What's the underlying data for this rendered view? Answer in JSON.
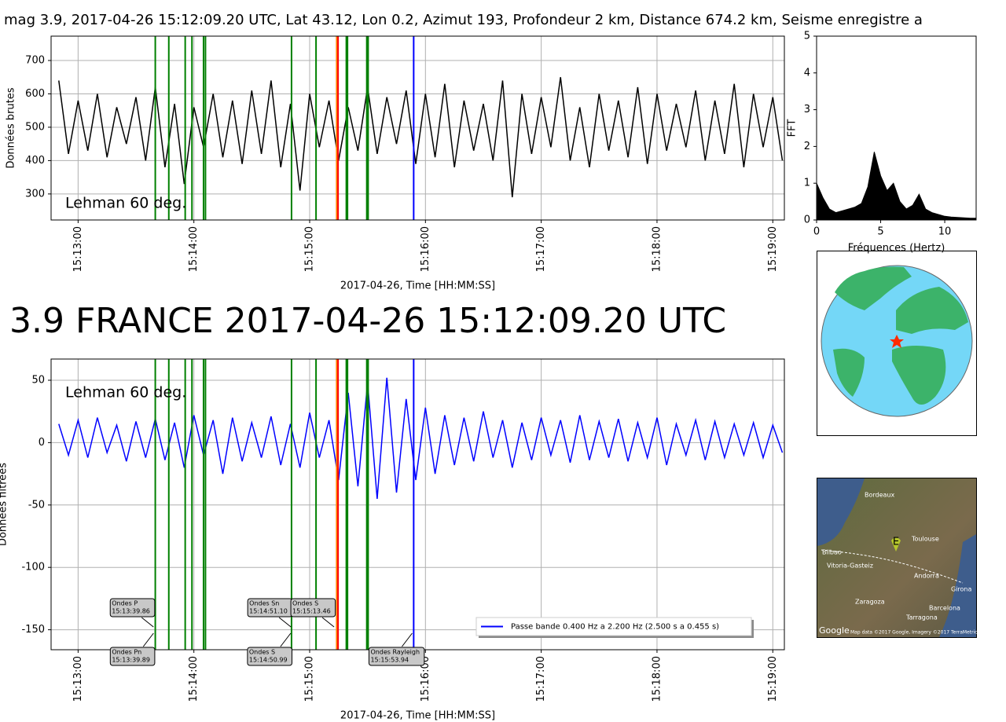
{
  "chart_data": [
    {
      "type": "line",
      "title": "mag 3.9, 2017-04-26 15:12:09.20 UTC, Lat 43.12, Lon 0.2, Azimut 193, Profondeur 2 km, Distance 674.2 km, Seisme enregistre a",
      "x_label": "2017-04-26, Time [HH:MM:SS]",
      "y_label": "Données brutes",
      "note": {
        "text": "Lehman 60 deg.",
        "color": "#f08080"
      },
      "x": [
        "15:12:50",
        "15:12:55",
        "15:13:00",
        "15:13:05",
        "15:13:10",
        "15:13:15",
        "15:13:20",
        "15:13:25",
        "15:13:30",
        "15:13:35",
        "15:13:40",
        "15:13:45",
        "15:13:50",
        "15:13:55",
        "15:14:00",
        "15:14:05",
        "15:14:10",
        "15:14:15",
        "15:14:20",
        "15:14:25",
        "15:14:30",
        "15:14:35",
        "15:14:40",
        "15:14:45",
        "15:14:50",
        "15:14:55",
        "15:15:00",
        "15:15:05",
        "15:15:10",
        "15:15:15",
        "15:15:20",
        "15:15:25",
        "15:15:30",
        "15:15:35",
        "15:15:40",
        "15:15:45",
        "15:15:50",
        "15:15:55",
        "15:16:00",
        "15:16:05",
        "15:16:10",
        "15:16:15",
        "15:16:20",
        "15:16:25",
        "15:16:30",
        "15:16:35",
        "15:16:40",
        "15:16:45",
        "15:16:50",
        "15:16:55",
        "15:17:00",
        "15:17:05",
        "15:17:10",
        "15:17:15",
        "15:17:20",
        "15:17:25",
        "15:17:30",
        "15:17:35",
        "15:17:40",
        "15:17:45",
        "15:17:50",
        "15:17:55",
        "15:18:00",
        "15:18:05",
        "15:18:10",
        "15:18:15",
        "15:18:20",
        "15:18:25",
        "15:18:30",
        "15:18:35",
        "15:18:40",
        "15:18:45",
        "15:18:50",
        "15:18:55",
        "15:19:00",
        "15:19:05"
      ],
      "series": [
        {
          "color": "#000000",
          "values": [
            640,
            420,
            580,
            430,
            600,
            410,
            560,
            450,
            590,
            400,
            620,
            380,
            570,
            330,
            560,
            440,
            600,
            410,
            580,
            390,
            610,
            420,
            640,
            380,
            570,
            310,
            600,
            440,
            580,
            400,
            560,
            430,
            620,
            420,
            590,
            450,
            610,
            390,
            600,
            410,
            630,
            380,
            580,
            430,
            570,
            400,
            640,
            290,
            600,
            420,
            590,
            440,
            650,
            400,
            560,
            380,
            600,
            430,
            580,
            410,
            620,
            390,
            600,
            430,
            570,
            440,
            610,
            400,
            580,
            420,
            630,
            380,
            600,
            440,
            590,
            400
          ]
        }
      ],
      "xlim": [
        "15:12:46",
        "15:19:06"
      ],
      "xticks": [
        "15:13:00",
        "15:14:00",
        "15:15:00",
        "15:16:00",
        "15:17:00",
        "15:18:00",
        "15:19:00"
      ],
      "ylim": [
        222,
        773
      ],
      "yticks": [
        300,
        400,
        500,
        600,
        700
      ],
      "grid": true,
      "vlines": [
        {
          "x": "15:13:40",
          "color": "#008000"
        },
        {
          "x": "15:13:47",
          "color": "#008000"
        },
        {
          "x": "15:13:55.5",
          "color": "#008000"
        },
        {
          "x": "15:13:59",
          "color": "#008000"
        },
        {
          "x": "15:14:05",
          "color": "#008000"
        },
        {
          "x": "15:14:06",
          "color": "#008000"
        },
        {
          "x": "15:14:50.6",
          "color": "#008000"
        },
        {
          "x": "15:15:03.3",
          "color": "#008000"
        },
        {
          "x": "15:15:14",
          "color": "#ff8000"
        },
        {
          "x": "15:15:14.7",
          "color": "#ff0000"
        },
        {
          "x": "15:15:19",
          "color": "#008000"
        },
        {
          "x": "15:15:19.6",
          "color": "#008000"
        },
        {
          "x": "15:15:29.6",
          "color": "#008000"
        },
        {
          "x": "15:15:30.3",
          "color": "#008000"
        },
        {
          "x": "15:15:53.9",
          "color": "#0000ff"
        }
      ]
    },
    {
      "type": "area",
      "x_label": "Fréquences (Hertz)",
      "y_label": "FFT",
      "x": [
        0,
        0.5,
        1,
        1.5,
        2,
        2.5,
        3,
        3.5,
        4,
        4.5,
        5,
        5.5,
        6,
        6.5,
        7,
        7.5,
        8,
        8.5,
        9,
        9.5,
        10,
        10.5,
        11,
        11.5,
        12,
        12.5
      ],
      "series": [
        {
          "color": "#000000",
          "values": [
            1.0,
            0.6,
            0.3,
            0.2,
            0.25,
            0.3,
            0.35,
            0.45,
            0.9,
            1.85,
            1.2,
            0.8,
            1.0,
            0.5,
            0.3,
            0.4,
            0.7,
            0.3,
            0.2,
            0.15,
            0.1,
            0.08,
            0.07,
            0.06,
            0.05,
            0.05
          ]
        }
      ],
      "xlim": [
        0,
        12.45
      ],
      "xticks": [
        0,
        5,
        10
      ],
      "ylim": [
        0,
        5
      ],
      "yticks": [
        0,
        1,
        2,
        3,
        4,
        5
      ],
      "grid": false
    },
    {
      "type": "line",
      "title": "3.9 FRANCE 2017-04-26 15:12:09.20 UTC",
      "title_color": "#f47c7c",
      "x_label": "2017-04-26, Time [HH:MM:SS]",
      "y_label": "Données filtrées",
      "note": {
        "text": "Lehman 60 deg.",
        "color": "#c080c0"
      },
      "legend": "lower right",
      "x": [
        "15:12:50",
        "15:12:55",
        "15:13:00",
        "15:13:05",
        "15:13:10",
        "15:13:15",
        "15:13:20",
        "15:13:25",
        "15:13:30",
        "15:13:35",
        "15:13:40",
        "15:13:45",
        "15:13:50",
        "15:13:55",
        "15:14:00",
        "15:14:05",
        "15:14:10",
        "15:14:15",
        "15:14:20",
        "15:14:25",
        "15:14:30",
        "15:14:35",
        "15:14:40",
        "15:14:45",
        "15:14:50",
        "15:14:55",
        "15:15:00",
        "15:15:05",
        "15:15:10",
        "15:15:15",
        "15:15:20",
        "15:15:25",
        "15:15:30",
        "15:15:35",
        "15:15:40",
        "15:15:45",
        "15:15:50",
        "15:15:55",
        "15:16:00",
        "15:16:05",
        "15:16:10",
        "15:16:15",
        "15:16:20",
        "15:16:25",
        "15:16:30",
        "15:16:35",
        "15:16:40",
        "15:16:45",
        "15:16:50",
        "15:16:55",
        "15:17:00",
        "15:17:05",
        "15:17:10",
        "15:17:15",
        "15:17:20",
        "15:17:25",
        "15:17:30",
        "15:17:35",
        "15:17:40",
        "15:17:45",
        "15:17:50",
        "15:17:55",
        "15:18:00",
        "15:18:05",
        "15:18:10",
        "15:18:15",
        "15:18:20",
        "15:18:25",
        "15:18:30",
        "15:18:35",
        "15:18:40",
        "15:18:45",
        "15:18:50",
        "15:18:55",
        "15:19:00",
        "15:19:05"
      ],
      "series": [
        {
          "name": "Passe bande 0.400 Hz a 2.200 Hz (2.500 s a 0.455 s)",
          "color": "#0000ff",
          "values": [
            15,
            -10,
            18,
            -12,
            20,
            -8,
            14,
            -15,
            17,
            -12,
            19,
            -14,
            16,
            -20,
            22,
            -10,
            18,
            -25,
            20,
            -15,
            16,
            -12,
            21,
            -18,
            15,
            -20,
            24,
            -12,
            18,
            -30,
            40,
            -35,
            48,
            -45,
            52,
            -40,
            35,
            -30,
            28,
            -25,
            22,
            -18,
            20,
            -15,
            25,
            -12,
            18,
            -20,
            16,
            -14,
            20,
            -10,
            18,
            -16,
            22,
            -14,
            17,
            -12,
            19,
            -15,
            16,
            -12,
            20,
            -18,
            15,
            -10,
            18,
            -14,
            17,
            -12,
            15,
            -10,
            16,
            -12,
            14,
            -8
          ]
        }
      ],
      "xlim": [
        "15:12:46",
        "15:19:06"
      ],
      "xticks": [
        "15:13:00",
        "15:14:00",
        "15:15:00",
        "15:16:00",
        "15:17:00",
        "15:18:00",
        "15:19:00"
      ],
      "ylim": [
        -166,
        67
      ],
      "yticks": [
        -150,
        -100,
        -50,
        0,
        50
      ],
      "grid": true,
      "vlines": [
        {
          "x": "15:13:40",
          "color": "#008000"
        },
        {
          "x": "15:13:47",
          "color": "#008000"
        },
        {
          "x": "15:13:55.5",
          "color": "#008000"
        },
        {
          "x": "15:13:59",
          "color": "#008000"
        },
        {
          "x": "15:14:05",
          "color": "#008000"
        },
        {
          "x": "15:14:06",
          "color": "#008000"
        },
        {
          "x": "15:14:50.6",
          "color": "#008000"
        },
        {
          "x": "15:15:03.3",
          "color": "#008000"
        },
        {
          "x": "15:15:14",
          "color": "#ff8000"
        },
        {
          "x": "15:15:14.7",
          "color": "#ff0000"
        },
        {
          "x": "15:15:19",
          "color": "#008000"
        },
        {
          "x": "15:15:19.6",
          "color": "#008000"
        },
        {
          "x": "15:15:29.6",
          "color": "#008000"
        },
        {
          "x": "15:15:30.3",
          "color": "#008000"
        },
        {
          "x": "15:15:53.9",
          "color": "#0000ff"
        }
      ],
      "annotations": [
        {
          "text": "Ondes P",
          "time": "15:13:39.86"
        },
        {
          "text": "Ondes Sn",
          "time": "15:14:51.10"
        },
        {
          "text": "Ondes S",
          "time": "15:15:13.46"
        },
        {
          "text": "Ondes Pn",
          "time": "15:13:39.89"
        },
        {
          "text": "Ondes S",
          "time": "15:14:50.99"
        },
        {
          "text": "Ondes Rayleigh",
          "time": "15:15:53.94"
        }
      ]
    }
  ],
  "map": {
    "labels": [
      "Bordeaux",
      "Toulouse",
      "Bilbao",
      "Vitoria-Gasteiz",
      "Andorra",
      "Girona",
      "Zaragoza",
      "Barcelona",
      "Tarragona"
    ],
    "pin": "E",
    "logo": "Google",
    "attribution": "Map data ©2017 Google, Imagery ©2017 TerraMetrics"
  }
}
